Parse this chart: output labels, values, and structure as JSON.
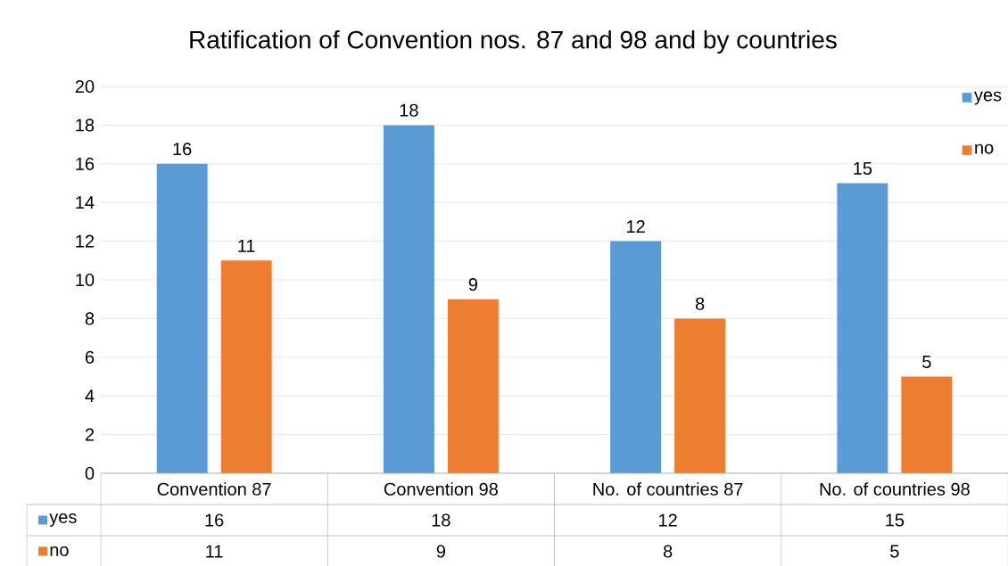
{
  "chart_data": {
    "type": "bar",
    "title": "Ratification of Convention nos. 87 and 98 and by countries",
    "categories": [
      "Convention 87",
      "Convention 98",
      "No. of countries 87",
      "No. of countries 98"
    ],
    "series": [
      {
        "name": "yes",
        "color": "#5b9bd5",
        "values": [
          16,
          18,
          12,
          15
        ],
        "value_labels": [
          "16",
          "18",
          "12",
          "15"
        ]
      },
      {
        "name": "no",
        "color": "#ed7d31",
        "values": [
          11,
          9,
          8,
          5
        ],
        "value_labels": [
          "11",
          "9",
          "8",
          "5"
        ]
      }
    ],
    "ylim": [
      0,
      20
    ],
    "yticks": [
      0,
      2,
      4,
      6,
      8,
      10,
      12,
      14,
      16,
      18,
      20
    ],
    "grid": "y",
    "legend": "top right",
    "data_labels": true
  }
}
